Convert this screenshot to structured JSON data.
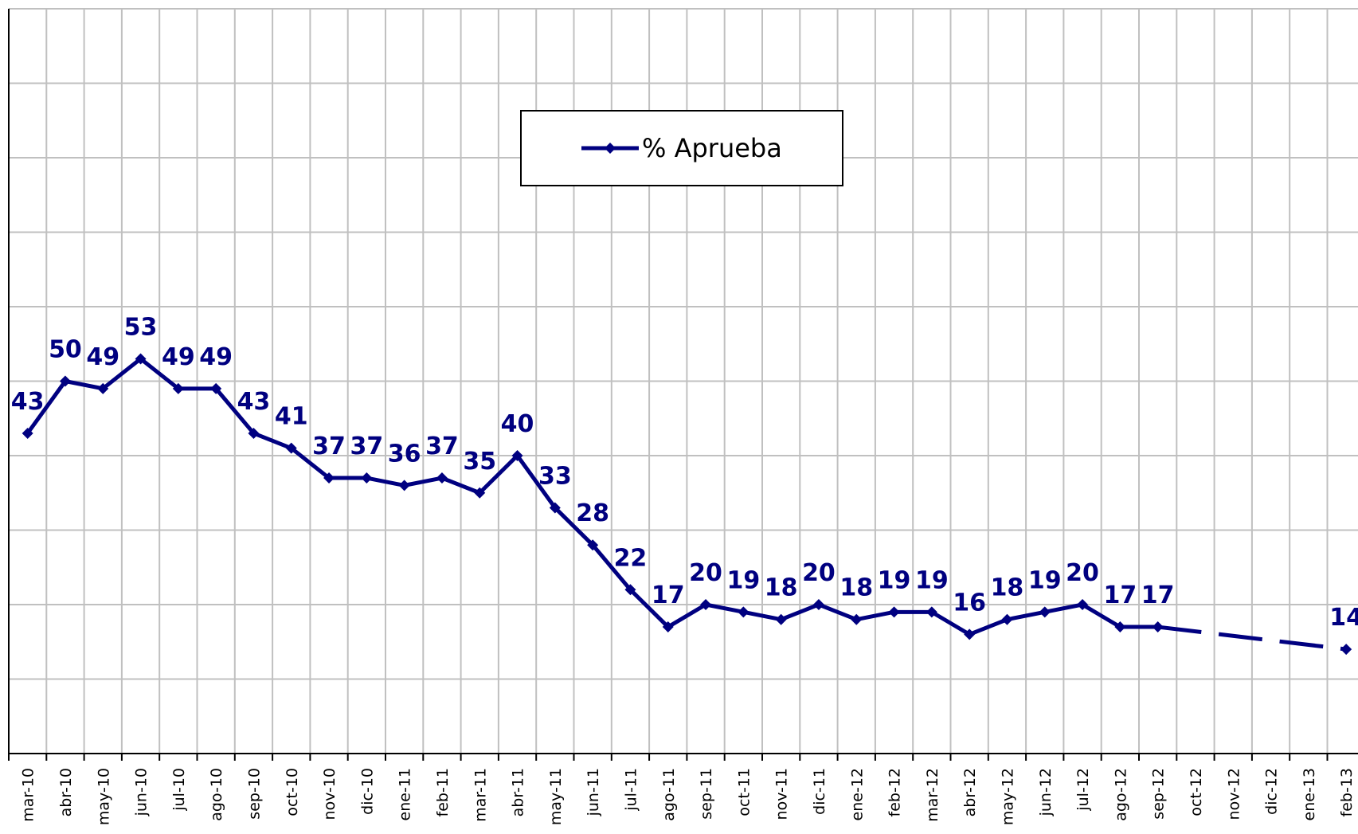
{
  "chart_data": {
    "type": "line",
    "categories": [
      "mar-10",
      "abr-10",
      "may-10",
      "jun-10",
      "jul-10",
      "ago-10",
      "sep-10",
      "oct-10",
      "nov-10",
      "dic-10",
      "ene-11",
      "feb-11",
      "mar-11",
      "abr-11",
      "may-11",
      "jun-11",
      "jul-11",
      "ago-11",
      "sep-11",
      "oct-11",
      "nov-11",
      "dic-11",
      "ene-12",
      "feb-12",
      "mar-12",
      "abr-12",
      "may-12",
      "jun-12",
      "jul-12",
      "ago-12",
      "sep-12",
      "oct-12",
      "nov-12",
      "dic-12",
      "ene-13",
      "feb-13"
    ],
    "series": [
      {
        "name": "% Aprueba",
        "color": "#000080",
        "values": [
          43,
          50,
          49,
          53,
          49,
          49,
          43,
          41,
          37,
          37,
          36,
          37,
          35,
          40,
          33,
          28,
          22,
          17,
          20,
          19,
          18,
          20,
          18,
          19,
          19,
          16,
          18,
          19,
          20,
          17,
          17,
          null,
          null,
          null,
          null,
          14
        ]
      }
    ],
    "ylim": [
      0,
      100
    ],
    "yticks": [
      0,
      10,
      20,
      30,
      40,
      50,
      60,
      70,
      80,
      90,
      100
    ],
    "grid": true,
    "gap_style": "dashed",
    "data_labels": true
  }
}
